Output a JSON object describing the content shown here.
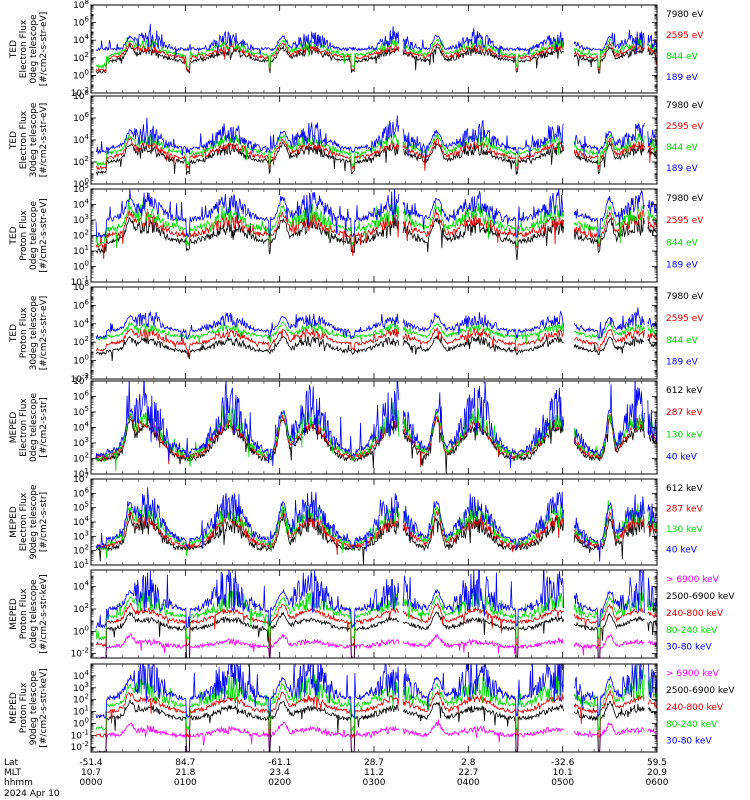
{
  "figure": {
    "date_label": "2024 Apr 10",
    "footer_row_labels": [
      "Lat",
      "MLT",
      "hhmm"
    ],
    "footer": {
      "lat": [
        "-51.4",
        "84.7",
        "-61.1",
        "28.7",
        "2.8",
        "-32.6",
        "59.5"
      ],
      "mlt": [
        "10.7",
        "21.8",
        "23.4",
        "11.2",
        "22.7",
        "10.1",
        "20.9"
      ],
      "hhmm": [
        "0000",
        "0100",
        "0200",
        "0300",
        "0400",
        "0500",
        "0600"
      ]
    }
  },
  "chart_data": [
    {
      "type": "line",
      "ylabel": [
        "TED",
        "Electron Flux",
        "0deg telescope",
        "[#/cm2-s-str-eV]"
      ],
      "log": true,
      "y_ticks": [
        "10^8",
        "10^6",
        "10^4",
        "10^2",
        "10^0",
        "10^-2"
      ],
      "y_tick_exps": [
        8,
        6,
        4,
        2,
        0,
        -2
      ],
      "ylim_exp": [
        -2,
        8
      ],
      "series": [
        {
          "name": "7980 eV",
          "color": "#000000",
          "base": 1.6,
          "peak": 2.6,
          "bg": 0.4,
          "spike": 0.6
        },
        {
          "name": "2595 eV",
          "color": "#e00000",
          "base": 2.0,
          "peak": 3.0,
          "bg": 0.6,
          "spike": 0.5
        },
        {
          "name": "844 eV",
          "color": "#00dd00",
          "base": 2.3,
          "peak": 3.4,
          "bg": 1.0,
          "spike": 0.7
        },
        {
          "name": "189 eV",
          "color": "#0000ff",
          "base": 2.8,
          "peak": 3.8,
          "bg": 3.0,
          "spike": 1.2
        }
      ]
    },
    {
      "type": "line",
      "ylabel": [
        "TED",
        "Electron Flux",
        "30deg telescope",
        "[#/cm2-s-str-eV]"
      ],
      "log": true,
      "y_ticks": [
        "10^8",
        "10^6",
        "10^4",
        "10^2",
        "10^0"
      ],
      "y_tick_exps": [
        8,
        6,
        4,
        2,
        0
      ],
      "ylim_exp": [
        0,
        8
      ],
      "series": [
        {
          "name": "7980 eV",
          "color": "#000000",
          "base": 2.0,
          "peak": 3.0,
          "bg": 1.0,
          "spike": 0.6
        },
        {
          "name": "2595 eV",
          "color": "#e00000",
          "base": 2.4,
          "peak": 3.4,
          "bg": 1.5,
          "spike": 0.5
        },
        {
          "name": "844 eV",
          "color": "#00dd00",
          "base": 2.8,
          "peak": 3.8,
          "bg": 1.8,
          "spike": 0.7
        },
        {
          "name": "189 eV",
          "color": "#0000ff",
          "base": 3.2,
          "peak": 4.2,
          "bg": 2.9,
          "spike": 1.4
        }
      ]
    },
    {
      "type": "line",
      "ylabel": [
        "TED",
        "Proton Flux",
        "0deg telescope",
        "[#/cm2-s-str-eV]"
      ],
      "log": true,
      "y_ticks": [
        "10^5",
        "10^4",
        "10^3",
        "10^2",
        "10^1",
        "10^0",
        "10^-1"
      ],
      "y_tick_exps": [
        5,
        4,
        3,
        2,
        1,
        0,
        -1
      ],
      "ylim_exp": [
        -1,
        5
      ],
      "series": [
        {
          "name": "7980 eV",
          "color": "#000000",
          "base": 1.6,
          "peak": 2.4,
          "bg": 1.0,
          "spike": 0.6
        },
        {
          "name": "2595 eV",
          "color": "#e00000",
          "base": 2.0,
          "peak": 2.8,
          "bg": 1.4,
          "spike": 0.6
        },
        {
          "name": "844 eV",
          "color": "#00dd00",
          "base": 2.4,
          "peak": 3.2,
          "bg": 1.5,
          "spike": 0.8
        },
        {
          "name": "189 eV",
          "color": "#0000ff",
          "base": 3.0,
          "peak": 3.8,
          "bg": 2.0,
          "spike": 1.0
        }
      ]
    },
    {
      "type": "line",
      "ylabel": [
        "TED",
        "Proton Flux",
        "30deg telescope",
        "[#/cm2-s-str-eV]"
      ],
      "log": true,
      "y_ticks": [
        "10^8",
        "10^6",
        "10^4",
        "10^2",
        "10^0",
        "10^-2"
      ],
      "y_tick_exps": [
        8,
        6,
        4,
        2,
        0,
        -2
      ],
      "ylim_exp": [
        -2,
        8
      ],
      "series": [
        {
          "name": "7980 eV",
          "color": "#000000",
          "base": 1.0,
          "peak": 2.0,
          "bg": 0.8,
          "spike": 0.6
        },
        {
          "name": "2595 eV",
          "color": "#e00000",
          "base": 1.8,
          "peak": 2.8,
          "bg": 1.2,
          "spike": 0.6
        },
        {
          "name": "844 eV",
          "color": "#00dd00",
          "base": 2.6,
          "peak": 3.4,
          "bg": 2.4,
          "spike": 0.6
        },
        {
          "name": "189 eV",
          "color": "#0000ff",
          "base": 3.2,
          "peak": 4.2,
          "bg": 2.6,
          "spike": 1.0
        }
      ]
    },
    {
      "type": "line",
      "ylabel": [
        "MEPED",
        "Electron Flux",
        "0deg telescope",
        "[#/cm2-s-str]"
      ],
      "log": true,
      "y_ticks": [
        "10^7",
        "10^6",
        "10^5",
        "10^4",
        "10^3",
        "10^2",
        "10^1"
      ],
      "y_tick_exps": [
        7,
        6,
        5,
        4,
        3,
        2,
        1
      ],
      "ylim_exp": [
        1,
        7
      ],
      "series": [
        {
          "name": "612 keV",
          "color": "#000000",
          "base": 1.9,
          "peak": 3.9,
          "bg": 2.0,
          "spike": 0.3
        },
        {
          "name": "287 keV",
          "color": "#e00000",
          "base": 2.1,
          "peak": 4.1,
          "bg": 2.1,
          "spike": 0.4
        },
        {
          "name": "130 keV",
          "color": "#00dd00",
          "base": 2.2,
          "peak": 4.3,
          "bg": 2.0,
          "spike": 0.8
        },
        {
          "name": "40 keV",
          "color": "#0000ff",
          "base": 2.4,
          "peak": 4.5,
          "bg": 2.2,
          "spike": 2.0
        }
      ]
    },
    {
      "type": "line",
      "ylabel": [
        "MEPED",
        "Electron Flux",
        "90deg telescope",
        "[#/cm2-s-str]"
      ],
      "log": true,
      "y_ticks": [
        "10^7",
        "10^6",
        "10^5",
        "10^4",
        "10^3",
        "10^2",
        "10^1"
      ],
      "y_tick_exps": [
        7,
        6,
        5,
        4,
        3,
        2,
        1
      ],
      "ylim_exp": [
        1,
        7
      ],
      "series": [
        {
          "name": "612 keV",
          "color": "#000000",
          "base": 2.0,
          "peak": 3.6,
          "bg": 2.2,
          "spike": 0.8
        },
        {
          "name": "287 keV",
          "color": "#e00000",
          "base": 2.3,
          "peak": 4.0,
          "bg": 2.3,
          "spike": 0.6
        },
        {
          "name": "130 keV",
          "color": "#00dd00",
          "base": 2.5,
          "peak": 4.4,
          "bg": 2.2,
          "spike": 0.8
        },
        {
          "name": "40 keV",
          "color": "#0000ff",
          "base": 2.7,
          "peak": 4.7,
          "bg": 2.3,
          "spike": 1.4
        }
      ]
    },
    {
      "type": "line",
      "ylabel": [
        "MEPED",
        "Proton Flux",
        "0deg telescope",
        "[#/cm2-s-str-keV]"
      ],
      "log": true,
      "y_ticks": [
        "10^4",
        "10^2",
        "10^0",
        "10^-2"
      ],
      "y_tick_exps": [
        4,
        2,
        0,
        -2
      ],
      "ylim_exp": [
        -2.4,
        5.5
      ],
      "series": [
        {
          "name": "> 6900 keV",
          "color": "#ff00ff",
          "base": -1.4,
          "peak": -1.0,
          "bg": -2.5,
          "spike": 0.2
        },
        {
          "name": "2500-6900 keV",
          "color": "#000000",
          "base": 0.2,
          "peak": 1.0,
          "bg": -2.5,
          "spike": 0.2
        },
        {
          "name": "240-800 keV",
          "color": "#e00000",
          "base": 0.8,
          "peak": 1.8,
          "bg": -1.2,
          "spike": 0.2
        },
        {
          "name": "80-240 keV",
          "color": "#00dd00",
          "base": 1.3,
          "peak": 2.4,
          "bg": -0.6,
          "spike": 1.2
        },
        {
          "name": "30-80 keV",
          "color": "#0000ff",
          "base": 1.9,
          "peak": 3.0,
          "bg": 0.5,
          "spike": 2.6
        }
      ]
    },
    {
      "type": "line",
      "ylabel": [
        "MEPED",
        "Proton Flux",
        "90deg telescope",
        "[#/cm2-s-str-keV]"
      ],
      "log": true,
      "y_ticks": [
        "10^4",
        "10^3",
        "10^2",
        "10^1",
        "10^0",
        "10^-1",
        "10^-2"
      ],
      "y_tick_exps": [
        4,
        3,
        2,
        1,
        0,
        -1,
        -2
      ],
      "ylim_exp": [
        -2.4,
        5.0
      ],
      "series": [
        {
          "name": "> 6900 keV",
          "color": "#ff00ff",
          "base": -1.0,
          "peak": -0.6,
          "bg": -2.5,
          "spike": 0.3
        },
        {
          "name": "2500-6900 keV",
          "color": "#000000",
          "base": 0.4,
          "peak": 1.2,
          "bg": -2.5,
          "spike": 0.3
        },
        {
          "name": "240-800 keV",
          "color": "#e00000",
          "base": 1.0,
          "peak": 2.0,
          "bg": -1.0,
          "spike": 0.3
        },
        {
          "name": "80-240 keV",
          "color": "#00dd00",
          "base": 1.5,
          "peak": 2.6,
          "bg": -0.4,
          "spike": 1.4
        },
        {
          "name": "30-80 keV",
          "color": "#0000ff",
          "base": 2.1,
          "peak": 3.2,
          "bg": 0.6,
          "spike": 2.5
        }
      ]
    }
  ],
  "x_axis": {
    "x_min": 0,
    "x_max": 360,
    "x_unit": "minutes",
    "minor_ticks_per_interval": 6,
    "data_gaps": [
      [
        0,
        3
      ],
      [
        196,
        198
      ],
      [
        301,
        307
      ],
      [
        352,
        354
      ]
    ],
    "auroral_passes": [
      {
        "center": 35,
        "width": 8
      },
      {
        "center": 88,
        "width": 8
      },
      {
        "center": 140,
        "width": 8
      },
      {
        "center": 193,
        "width": 8
      },
      {
        "center": 245,
        "width": 8
      },
      {
        "center": 297,
        "width": 8
      },
      {
        "center": 349,
        "width": 8
      }
    ],
    "radiation_belt_passes": [
      {
        "center": 25,
        "width": 4
      },
      {
        "center": 122,
        "width": 4
      },
      {
        "center": 220,
        "width": 4
      },
      {
        "center": 330,
        "width": 3
      }
    ]
  }
}
